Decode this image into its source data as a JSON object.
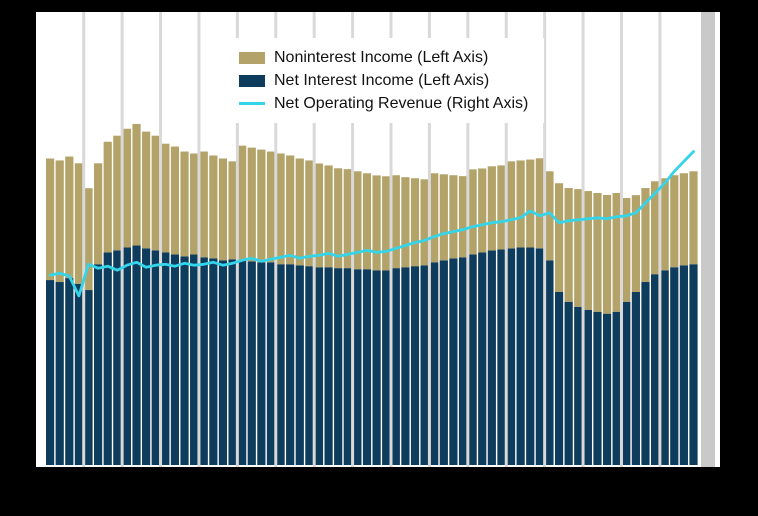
{
  "figure": {
    "outer_background": "#000000",
    "plot_background": "#ffffff",
    "gridline_color": "#d9d9d9",
    "right_band_color": "#c9c9c9"
  },
  "legend": {
    "position": "top-center",
    "items": [
      {
        "label": "Noninterest Income (Left Axis)",
        "color": "#b3a369",
        "swatch": "box"
      },
      {
        "label": "Net Interest Income (Left Axis)",
        "color": "#0e3c5c",
        "swatch": "box"
      },
      {
        "label": "Net Operating Revenue (Right Axis)",
        "color": "#35d4e9",
        "swatch": "line"
      }
    ]
  },
  "chart_data": {
    "type": "bar",
    "subtype": "stacked quarterly bars with line overlay on secondary axis",
    "title": "",
    "xlabel": "",
    "ylabel": "",
    "n_points": 68,
    "gridline_every": 4,
    "grid": "vertical light-gray lines at every 4-bar group boundary, drawn over bars",
    "x_tick_labels_visible": false,
    "y_tick_labels_visible": false,
    "left_ylim": [
      0,
      250
    ],
    "right_ylim": [
      0,
      400
    ],
    "legend_position": "top-center",
    "right_band": true,
    "series": [
      {
        "name": "Net Interest Income (Left Axis)",
        "type": "bar",
        "axis": "left",
        "stack": "income",
        "stack_order": "bottom",
        "color": "#0e3c5c",
        "values": [
          103.9,
          102.8,
          105.0,
          101.7,
          98.3,
          112.8,
          119.4,
          120.6,
          122.2,
          123.3,
          121.7,
          120.6,
          119.4,
          118.3,
          117.2,
          118.3,
          116.7,
          116.1,
          115.0,
          115.6,
          115.0,
          114.4,
          113.9,
          113.9,
          112.8,
          112.8,
          112.2,
          111.7,
          111.1,
          111.1,
          110.6,
          110.6,
          110.0,
          110.0,
          109.4,
          109.4,
          110.6,
          111.1,
          111.7,
          112.2,
          113.9,
          115.0,
          116.1,
          116.7,
          118.3,
          119.4,
          120.6,
          121.1,
          121.7,
          122.2,
          122.2,
          121.7,
          115.0,
          97.2,
          91.7,
          88.9,
          87.2,
          86.1,
          85.0,
          86.1,
          91.7,
          97.2,
          102.8,
          107.2,
          109.4,
          111.1,
          112.2,
          112.8
        ]
      },
      {
        "name": "Noninterest Income (Left Axis)",
        "type": "bar",
        "axis": "left",
        "stack": "income",
        "stack_order": "top",
        "color": "#b3a369",
        "values": [
          68.3,
          68.3,
          68.3,
          67.8,
          57.2,
          56.7,
          62.2,
          64.4,
          66.7,
          68.3,
          65.6,
          64.4,
          61.1,
          60.6,
          58.9,
          56.7,
          59.4,
          57.8,
          57.2,
          55.0,
          64.4,
          63.9,
          63.3,
          62.2,
          62.2,
          61.1,
          60.0,
          59.4,
          58.3,
          57.2,
          56.1,
          55.6,
          55.0,
          53.9,
          53.3,
          52.8,
          52.2,
          50.6,
          49.4,
          48.3,
          50.0,
          48.3,
          46.7,
          45.6,
          47.8,
          47.2,
          47.2,
          47.2,
          48.9,
          48.9,
          49.4,
          50.6,
          50.0,
          61.1,
          63.9,
          66.1,
          66.7,
          66.7,
          66.7,
          66.7,
          58.3,
          54.4,
          52.8,
          52.2,
          51.7,
          51.7,
          51.7,
          52.2
        ]
      },
      {
        "name": "Net Operating Revenue (Right Axis)",
        "type": "line",
        "axis": "right",
        "color": "#35d4e9",
        "values": [
          170.7,
          172.4,
          169.8,
          152.0,
          180.4,
          176.9,
          178.7,
          175.1,
          179.6,
          182.2,
          177.8,
          179.6,
          180.4,
          178.7,
          181.3,
          179.6,
          180.4,
          182.2,
          179.6,
          181.3,
          184.0,
          185.8,
          183.1,
          184.9,
          186.7,
          188.4,
          185.8,
          187.6,
          188.4,
          190.2,
          187.6,
          189.3,
          191.1,
          192.9,
          191.1,
          192.0,
          194.7,
          197.3,
          200.0,
          201.8,
          205.3,
          208.0,
          209.8,
          211.6,
          214.2,
          216.0,
          217.8,
          218.7,
          220.4,
          222.2,
          228.4,
          224.0,
          226.7,
          217.8,
          219.6,
          220.4,
          221.3,
          222.2,
          221.3,
          223.1,
          224.0,
          226.7,
          235.6,
          244.4,
          253.3,
          264.0,
          272.9,
          281.8
        ]
      }
    ]
  }
}
